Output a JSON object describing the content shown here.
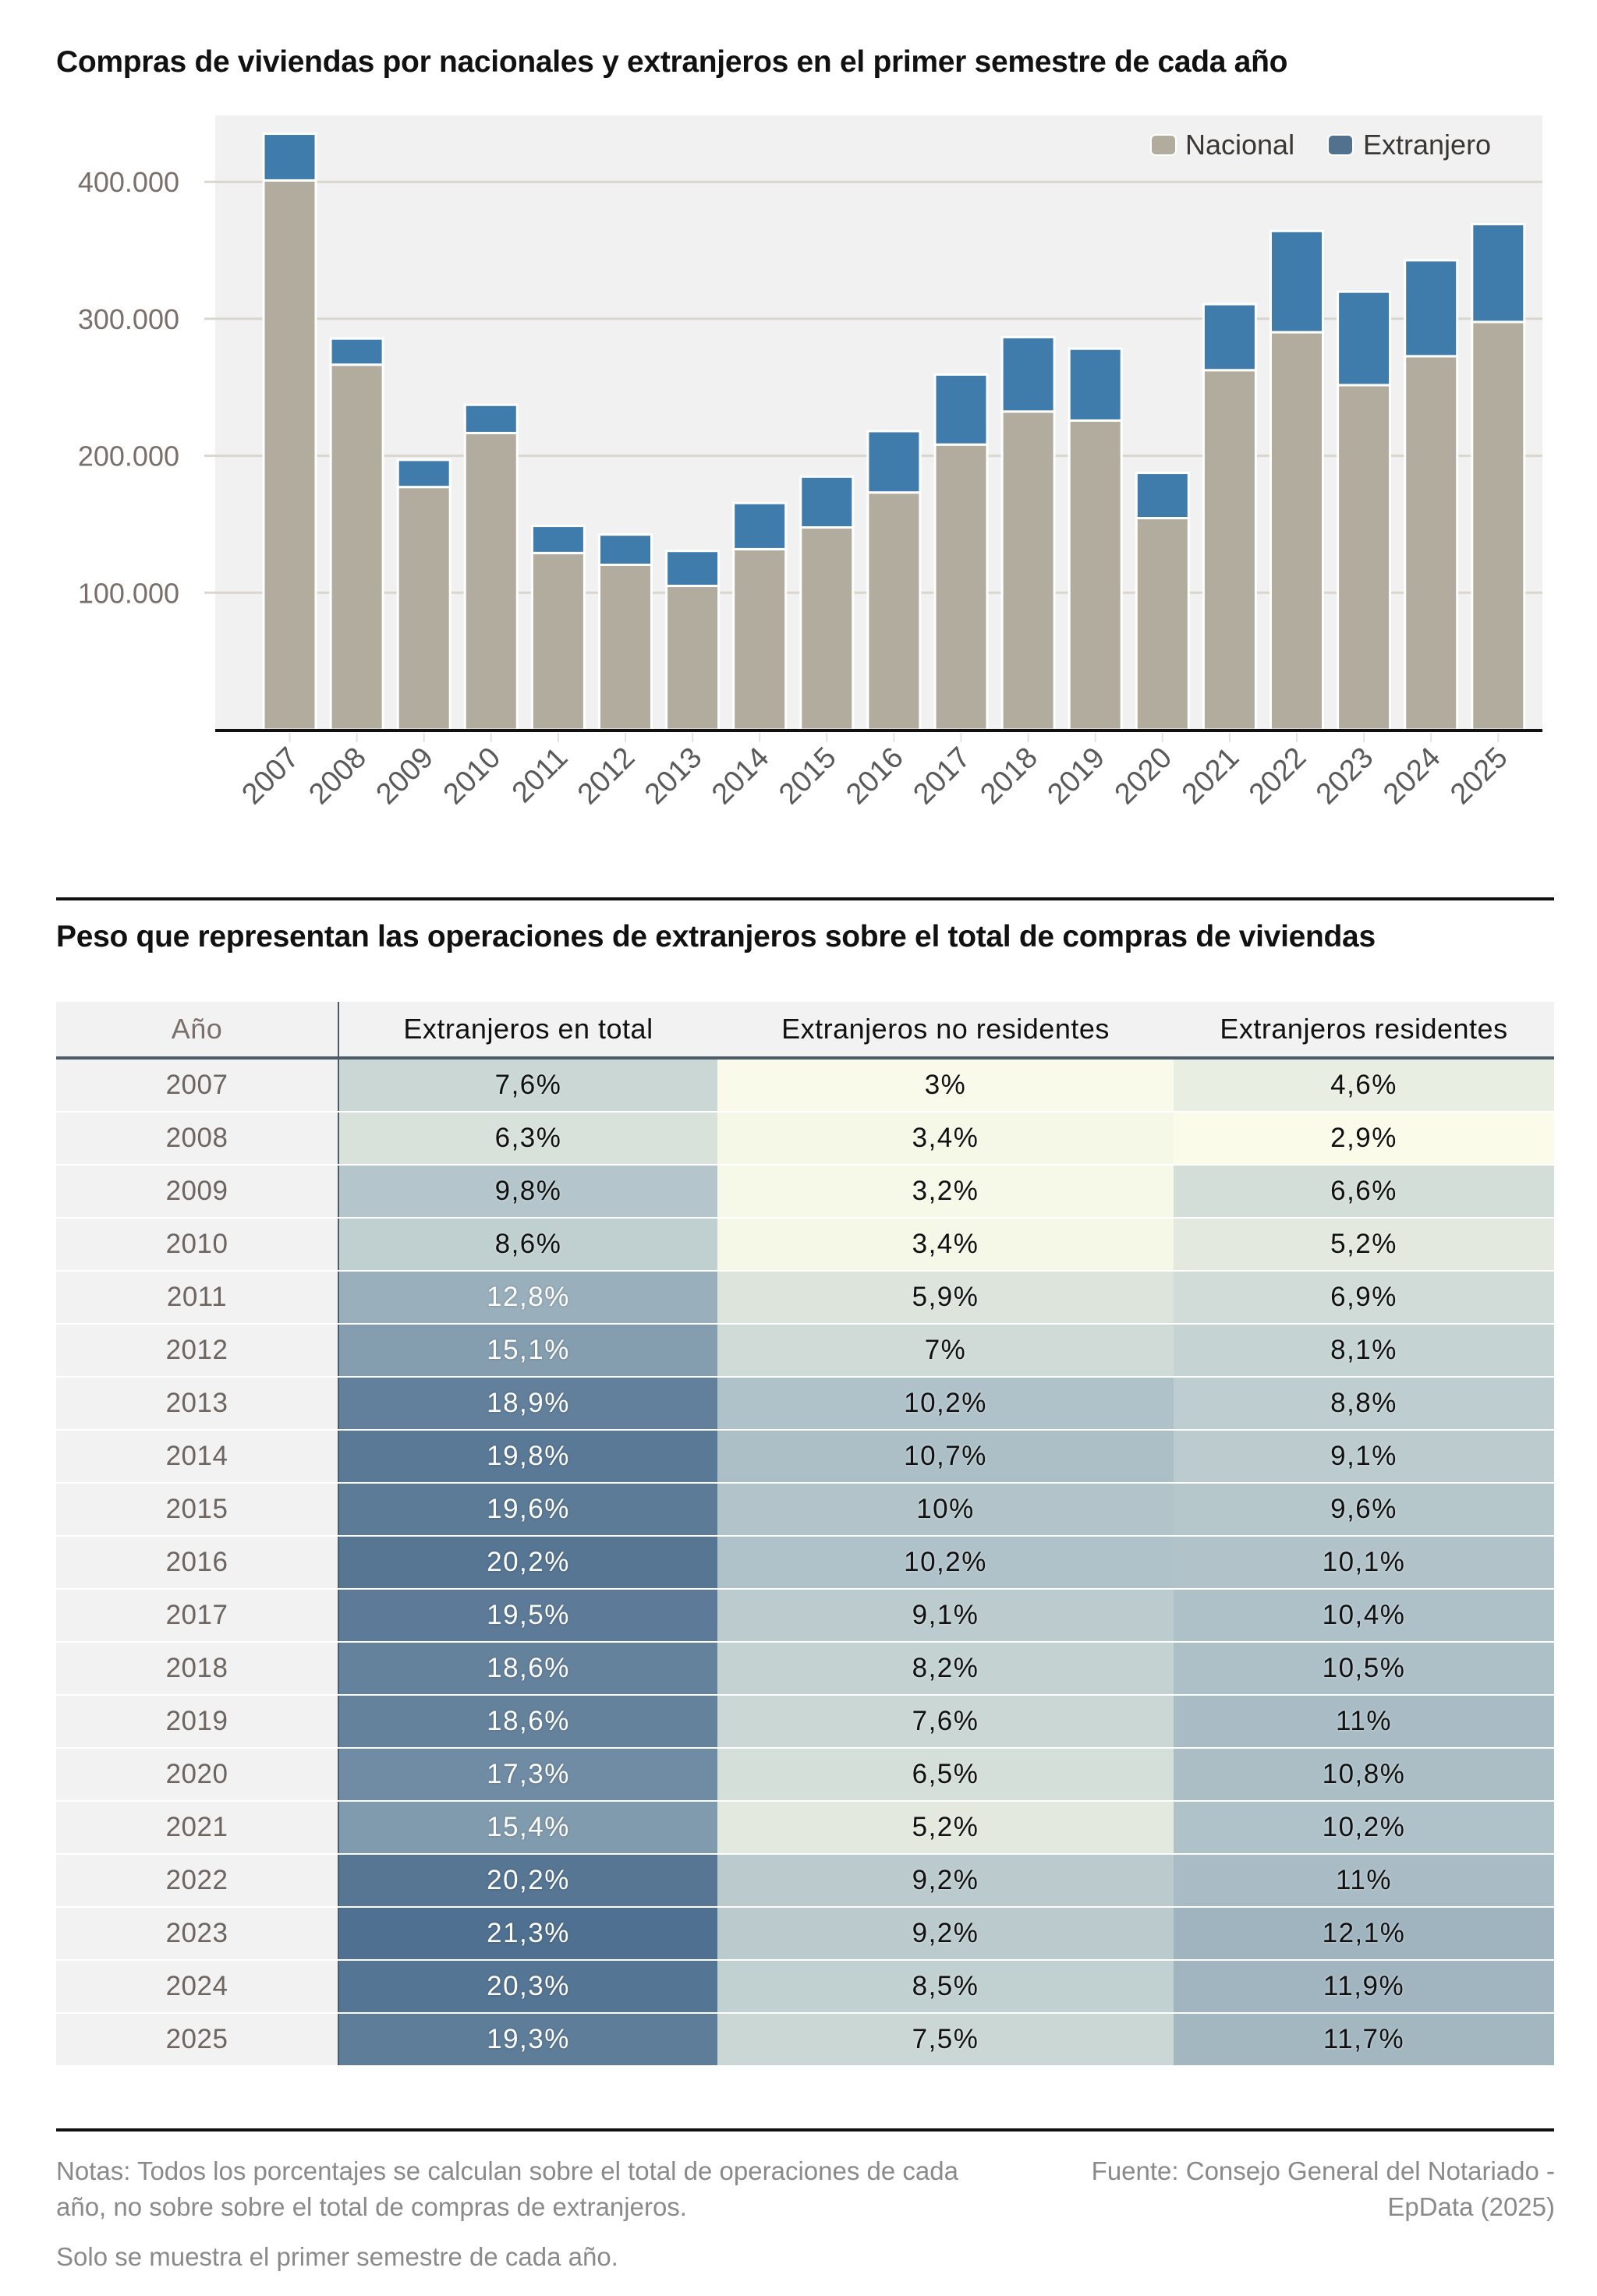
{
  "chart_title": "Compras de viviendas por nacionales y extranjeros en el primer semestre de cada año",
  "chart_data": {
    "type": "bar",
    "stacked": true,
    "title": "Compras de viviendas por nacionales y extranjeros en el primer semestre de cada año",
    "xlabel": "",
    "ylabel": "",
    "ylim": [
      0,
      450000
    ],
    "yticks": [
      100000,
      200000,
      300000,
      400000
    ],
    "ytick_labels": [
      "100.000",
      "200.000",
      "300.000",
      "400.000"
    ],
    "grid": true,
    "legend_position": "top-right",
    "categories": [
      "2007",
      "2008",
      "2009",
      "2010",
      "2011",
      "2012",
      "2013",
      "2014",
      "2015",
      "2016",
      "2017",
      "2018",
      "2019",
      "2020",
      "2021",
      "2022",
      "2023",
      "2024",
      "2025"
    ],
    "series": [
      {
        "name": "Nacional",
        "color": "#b2ac9e",
        "values": [
          401000,
          266500,
          177200,
          216600,
          129000,
          120400,
          105000,
          131800,
          147700,
          173200,
          208200,
          232300,
          225700,
          154500,
          262500,
          290200,
          251600,
          272700,
          297700
        ]
      },
      {
        "name": "Extranjero",
        "color": "#3f7cab",
        "values": [
          34100,
          19100,
          19800,
          20600,
          19800,
          22100,
          25500,
          33700,
          37100,
          44800,
          51100,
          54300,
          52500,
          33000,
          48200,
          73900,
          68200,
          70000,
          71400
        ]
      }
    ]
  },
  "table": {
    "title": "Peso que representan las operaciones de extranjeros sobre el total de compras de viviendas",
    "headers": [
      "Año",
      "Extranjeros en total",
      "Extranjeros no residentes",
      "Extranjeros residentes"
    ],
    "rows": [
      {
        "year": "2007",
        "total": "7,6%",
        "no_residentes": "3%",
        "residentes": "4,6%"
      },
      {
        "year": "2008",
        "total": "6,3%",
        "no_residentes": "3,4%",
        "residentes": "2,9%"
      },
      {
        "year": "2009",
        "total": "9,8%",
        "no_residentes": "3,2%",
        "residentes": "6,6%"
      },
      {
        "year": "2010",
        "total": "8,6%",
        "no_residentes": "3,4%",
        "residentes": "5,2%"
      },
      {
        "year": "2011",
        "total": "12,8%",
        "no_residentes": "5,9%",
        "residentes": "6,9%"
      },
      {
        "year": "2012",
        "total": "15,1%",
        "no_residentes": "7%",
        "residentes": "8,1%"
      },
      {
        "year": "2013",
        "total": "18,9%",
        "no_residentes": "10,2%",
        "residentes": "8,8%"
      },
      {
        "year": "2014",
        "total": "19,8%",
        "no_residentes": "10,7%",
        "residentes": "9,1%"
      },
      {
        "year": "2015",
        "total": "19,6%",
        "no_residentes": "10%",
        "residentes": "9,6%"
      },
      {
        "year": "2016",
        "total": "20,2%",
        "no_residentes": "10,2%",
        "residentes": "10,1%"
      },
      {
        "year": "2017",
        "total": "19,5%",
        "no_residentes": "9,1%",
        "residentes": "10,4%"
      },
      {
        "year": "2018",
        "total": "18,6%",
        "no_residentes": "8,2%",
        "residentes": "10,5%"
      },
      {
        "year": "2019",
        "total": "18,6%",
        "no_residentes": "7,6%",
        "residentes": "11%"
      },
      {
        "year": "2020",
        "total": "17,3%",
        "no_residentes": "6,5%",
        "residentes": "10,8%"
      },
      {
        "year": "2021",
        "total": "15,4%",
        "no_residentes": "5,2%",
        "residentes": "10,2%"
      },
      {
        "year": "2022",
        "total": "20,2%",
        "no_residentes": "9,2%",
        "residentes": "11%"
      },
      {
        "year": "2023",
        "total": "21,3%",
        "no_residentes": "9,2%",
        "residentes": "12,1%"
      },
      {
        "year": "2024",
        "total": "20,3%",
        "no_residentes": "8,5%",
        "residentes": "11,9%"
      },
      {
        "year": "2025",
        "total": "19,3%",
        "no_residentes": "7,5%",
        "residentes": "11,7%"
      }
    ]
  },
  "footer": {
    "notes": "Notas: Todos los porcentajes se calculan sobre el total de operaciones de cada año, no sobre sobre el total de compras de extranjeros.",
    "notes_extra": "Solo se muestra el primer semestre de cada año.",
    "source": "Fuente: Consejo General del Notariado - EpData (2025)"
  },
  "colors": {
    "nacional": "#b2ac9e",
    "extranjero": "#3f7cab",
    "legend_extranjero": "#52718f",
    "scale_low": "#fafbe9",
    "scale_high": "#4f7090"
  }
}
